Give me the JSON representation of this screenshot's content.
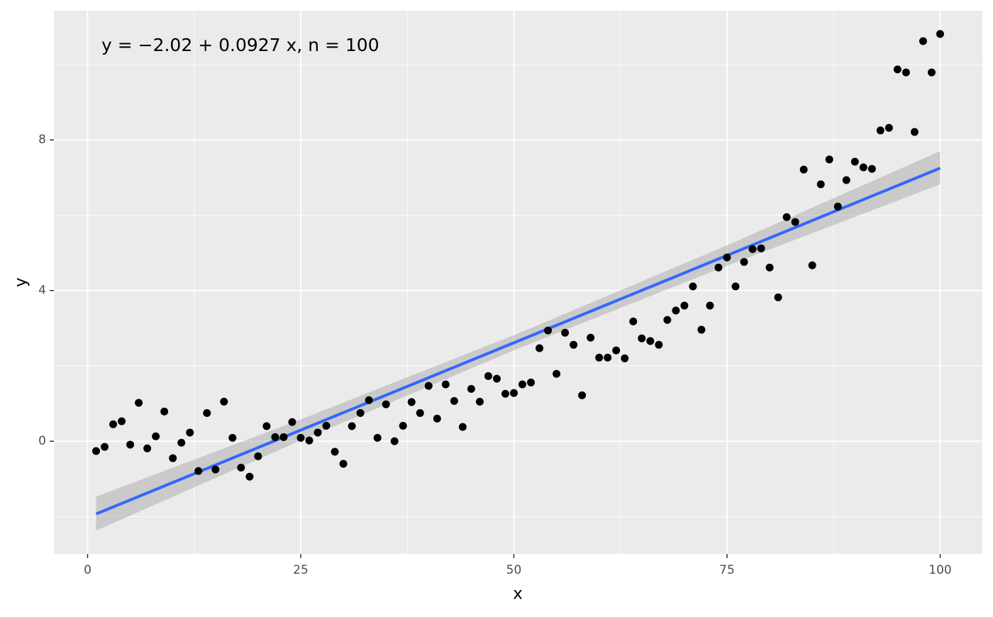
{
  "chart_data": {
    "type": "scatter",
    "annotation": "y = −2.02 + 0.0927 x, n = 100",
    "x_label": "x",
    "y_label": "y",
    "x": [
      1,
      2,
      3,
      4,
      5,
      6,
      7,
      8,
      9,
      10,
      11,
      12,
      13,
      14,
      15,
      16,
      17,
      18,
      19,
      20,
      21,
      22,
      23,
      24,
      25,
      26,
      27,
      28,
      29,
      30,
      31,
      32,
      33,
      34,
      35,
      36,
      37,
      38,
      39,
      40,
      41,
      42,
      43,
      44,
      45,
      46,
      47,
      48,
      49,
      50,
      51,
      52,
      53,
      54,
      55,
      56,
      57,
      58,
      59,
      60,
      61,
      62,
      63,
      64,
      65,
      66,
      67,
      68,
      69,
      70,
      71,
      72,
      73,
      74,
      75,
      76,
      77,
      78,
      79,
      80,
      81,
      82,
      83,
      84,
      85,
      86,
      87,
      88,
      89,
      90,
      91,
      92,
      93,
      94,
      95,
      96,
      97,
      98,
      99,
      100
    ],
    "values": [
      -0.26,
      -0.15,
      0.45,
      0.53,
      -0.09,
      1.02,
      -0.19,
      0.13,
      0.79,
      -0.45,
      -0.04,
      0.23,
      -0.79,
      0.75,
      -0.75,
      1.05,
      0.09,
      -0.7,
      -0.94,
      -0.4,
      0.4,
      0.11,
      0.11,
      0.51,
      0.09,
      0.02,
      0.23,
      0.41,
      -0.28,
      -0.6,
      0.4,
      0.75,
      1.09,
      0.09,
      0.98,
      0.0,
      0.41,
      1.04,
      0.75,
      1.47,
      0.6,
      1.51,
      1.07,
      0.38,
      1.39,
      1.05,
      1.73,
      1.66,
      1.26,
      1.28,
      1.51,
      1.56,
      2.47,
      2.94,
      1.79,
      2.88,
      2.56,
      1.22,
      2.75,
      2.22,
      2.22,
      2.41,
      2.2,
      3.18,
      2.73,
      2.66,
      2.56,
      3.22,
      3.47,
      3.6,
      4.11,
      2.96,
      3.6,
      4.61,
      4.88,
      4.11,
      4.76,
      5.1,
      5.12,
      4.61,
      3.82,
      5.95,
      5.82,
      7.21,
      4.67,
      6.82,
      7.48,
      6.23,
      6.93,
      7.42,
      7.27,
      7.23,
      8.25,
      8.32,
      9.87,
      9.79,
      8.21,
      10.62,
      9.79,
      10.81
    ],
    "color": "#000000",
    "fit": {
      "x": [
        1,
        100
      ],
      "y": [
        -1.93,
        7.25
      ],
      "color": "#3366FF"
    },
    "band": {
      "x": [
        1,
        25,
        50.5,
        75,
        100
      ],
      "lower": [
        -2.37,
        0.02,
        2.46,
        4.66,
        6.82
      ],
      "upper": [
        -1.47,
        0.58,
        2.86,
        5.2,
        7.7
      ],
      "color": "#999999"
    },
    "xlim": [
      -3.95,
      104.95
    ],
    "ylim": [
      -2.99,
      11.43
    ],
    "xticks": [
      0,
      25,
      50,
      75,
      100
    ],
    "yticks": [
      0,
      4,
      8
    ],
    "x_minor_grid": [
      12.5,
      37.5,
      62.5,
      87.5
    ],
    "y_minor_grid": [
      -2,
      2,
      6,
      10
    ],
    "grid": true
  }
}
